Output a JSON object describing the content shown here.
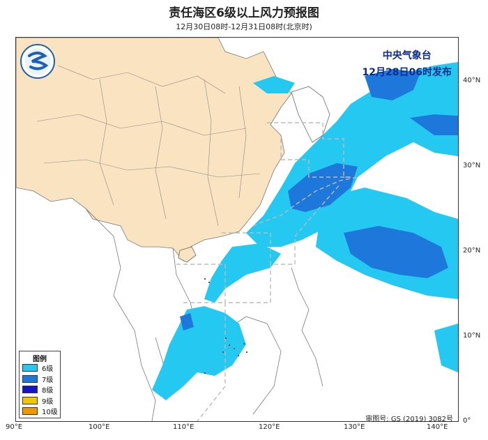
{
  "title": "责任海区6级以上风力预报图",
  "subtitle": "12月30日08时-12月31日08时(北京时)",
  "issuer": {
    "org": "中央气象台",
    "time": "12月28日06时发布"
  },
  "review_no": "审图号: GS (2019) 3082号",
  "legend": {
    "title": "图例",
    "items": [
      {
        "label": "6级",
        "color": "#24c8f0"
      },
      {
        "label": "7级",
        "color": "#1e78dc"
      },
      {
        "label": "8级",
        "color": "#1414c8"
      },
      {
        "label": "9级",
        "color": "#f0c800"
      },
      {
        "label": "10级",
        "color": "#f09600"
      }
    ]
  },
  "x_ticks": [
    "90°E",
    "100°E",
    "110°E",
    "120°E",
    "130°E",
    "140°E"
  ],
  "y_ticks": [
    "40°N",
    "30°N",
    "20°N",
    "10°N",
    "0°"
  ],
  "colors": {
    "land_china": "#fae3c0",
    "sea": "#ffffff",
    "level6": "#24c8f0",
    "level7": "#1e78dc",
    "level8": "#1414c8",
    "border": "#555555"
  }
}
